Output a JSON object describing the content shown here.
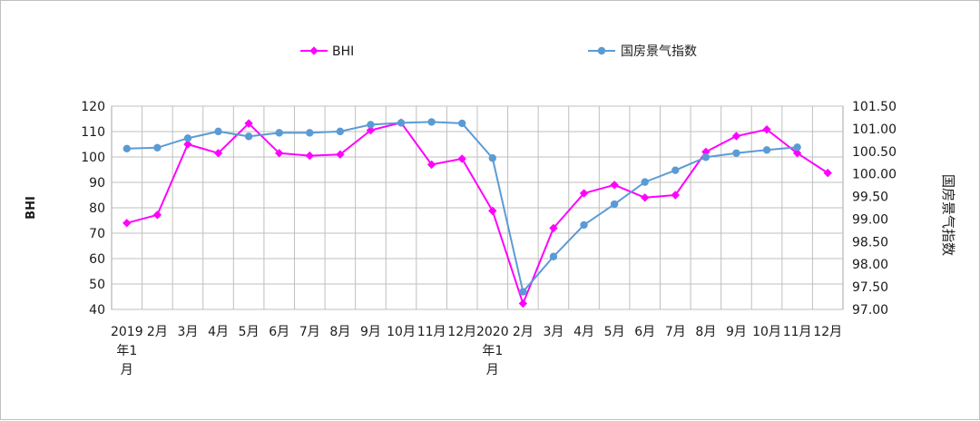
{
  "chart_data": {
    "type": "line",
    "title": "",
    "categories": [
      [
        "2019",
        "年1",
        "月"
      ],
      [
        "2月"
      ],
      [
        "3月"
      ],
      [
        "4月"
      ],
      [
        "5月"
      ],
      [
        "6月"
      ],
      [
        "7月"
      ],
      [
        "8月"
      ],
      [
        "9月"
      ],
      [
        "10月"
      ],
      [
        "11月"
      ],
      [
        "12月"
      ],
      [
        "2020",
        "年1",
        "月"
      ],
      [
        "2月"
      ],
      [
        "3月"
      ],
      [
        "4月"
      ],
      [
        "5月"
      ],
      [
        "6月"
      ],
      [
        "7月"
      ],
      [
        "8月"
      ],
      [
        "9月"
      ],
      [
        "10月"
      ],
      [
        "11月"
      ],
      [
        "12月"
      ]
    ],
    "ylabel": "BHI",
    "ylabel_right": "国房景气指数",
    "ylim": [
      40,
      120
    ],
    "yticks": [
      "40",
      "50",
      "60",
      "70",
      "80",
      "90",
      "100",
      "110",
      "120"
    ],
    "ylim_right": [
      97.0,
      101.5
    ],
    "yticks_right": [
      "97.00",
      "97.50",
      "98.00",
      "98.50",
      "99.00",
      "99.50",
      "100.00",
      "100.50",
      "101.00",
      "101.50"
    ],
    "grid": true,
    "legend_position": "top",
    "series": [
      {
        "name": "BHI",
        "axis": "left",
        "color": "#ff00ff",
        "marker": "diamond",
        "values": [
          74,
          77.2,
          105,
          101.5,
          113.2,
          101.5,
          100.5,
          101,
          110.5,
          113.5,
          97,
          99.3,
          78.8,
          42.3,
          72,
          85.7,
          89,
          84,
          85,
          102,
          108.2,
          110.8,
          101.5,
          93.7
        ]
      },
      {
        "name": "国房景气指数",
        "axis": "right",
        "color": "#5b9bd5",
        "marker": "circle",
        "values": [
          100.56,
          100.58,
          100.79,
          100.94,
          100.83,
          100.91,
          100.91,
          100.94,
          101.09,
          101.13,
          101.15,
          101.12,
          100.35,
          97.39,
          98.17,
          98.87,
          99.33,
          99.82,
          100.08,
          100.37,
          100.46,
          100.53,
          100.59,
          null
        ]
      }
    ]
  }
}
